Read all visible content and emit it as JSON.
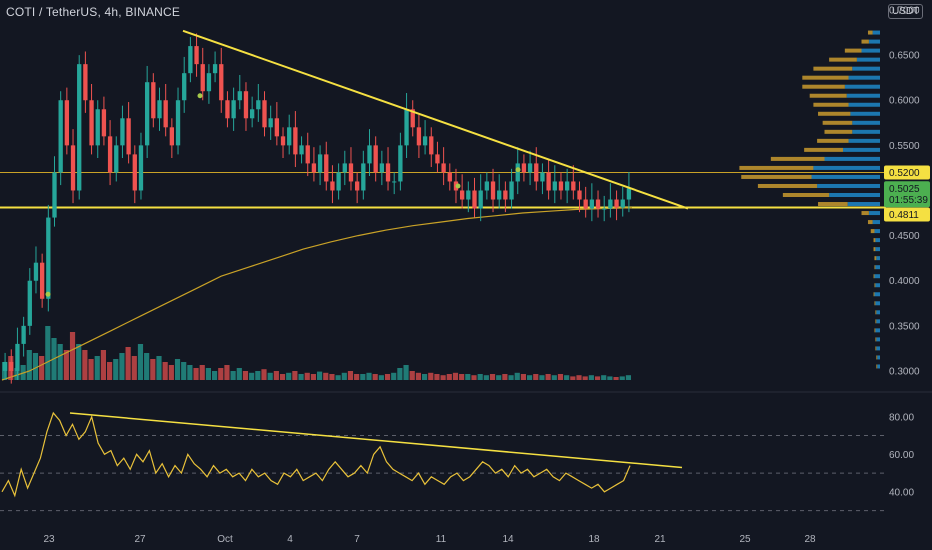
{
  "header": {
    "title": "COTI / TetherUS, 4h, BINANCE",
    "currency": "USDT"
  },
  "colors": {
    "background": "#131722",
    "up": "#26a69a",
    "down": "#ef5350",
    "trendline": "#f5e042",
    "ma": "#c9a227",
    "rsi": "#e8c13a",
    "profile_up": "#1e88c8",
    "profile_down": "#c99a2e",
    "last_price": "#4caf50"
  },
  "chart_data": [
    {
      "type": "candlestick",
      "pane": "price",
      "ylim": [
        0.29,
        0.7
      ],
      "y_ticks": [
        "0.7000",
        "0.6500",
        "0.6000",
        "0.5500",
        "0.4500",
        "0.4000",
        "0.3500",
        "0.3000"
      ],
      "price_tags": {
        "resistance": "0.5200",
        "last_price": "0.5025",
        "countdown": "01:55:39",
        "support": "0.4811"
      },
      "support_level": 0.4811,
      "resistance_level": 0.52,
      "last_price": 0.5025,
      "x_labels": [
        "23",
        "27",
        "Oct",
        "4",
        "7",
        "11",
        "14",
        "18",
        "21",
        "25",
        "28"
      ],
      "trendline": {
        "from": [
          "Sep 28",
          0.677
        ],
        "to": [
          "Oct 22",
          0.48
        ]
      },
      "ohlc_path": [
        0.31,
        0.3,
        0.33,
        0.35,
        0.4,
        0.42,
        0.38,
        0.47,
        0.52,
        0.6,
        0.55,
        0.5,
        0.64,
        0.6,
        0.55,
        0.59,
        0.56,
        0.52,
        0.55,
        0.58,
        0.54,
        0.5,
        0.55,
        0.62,
        0.58,
        0.6,
        0.57,
        0.55,
        0.6,
        0.63,
        0.66,
        0.64,
        0.61,
        0.63,
        0.64,
        0.6,
        0.58,
        0.6,
        0.61,
        0.58,
        0.59,
        0.6,
        0.57,
        0.58,
        0.56,
        0.55,
        0.57,
        0.54,
        0.55,
        0.53,
        0.52,
        0.54,
        0.51,
        0.5,
        0.52,
        0.53,
        0.51,
        0.5,
        0.53,
        0.55,
        0.52,
        0.53,
        0.51,
        0.51,
        0.55,
        0.59,
        0.57,
        0.55,
        0.56,
        0.54,
        0.53,
        0.52,
        0.51,
        0.5,
        0.49,
        0.5,
        0.48,
        0.5,
        0.51,
        0.49,
        0.5,
        0.49,
        0.51,
        0.53,
        0.52,
        0.53,
        0.51,
        0.52,
        0.5,
        0.51,
        0.5,
        0.51,
        0.5,
        0.49,
        0.48,
        0.49,
        0.48,
        0.48,
        0.49,
        0.4811,
        0.49,
        0.5025
      ],
      "ma_path": [
        0.29,
        0.3,
        0.315,
        0.33,
        0.345,
        0.36,
        0.375,
        0.39,
        0.405,
        0.415,
        0.425,
        0.435,
        0.443,
        0.45,
        0.456,
        0.461,
        0.465,
        0.469,
        0.472,
        0.475,
        0.477,
        0.479,
        0.48,
        0.481
      ],
      "volume": [
        0.3,
        0.4,
        0.2,
        0.25,
        0.5,
        0.45,
        0.4,
        0.9,
        0.7,
        0.6,
        0.5,
        0.8,
        0.6,
        0.5,
        0.35,
        0.4,
        0.5,
        0.3,
        0.35,
        0.45,
        0.55,
        0.4,
        0.6,
        0.45,
        0.35,
        0.4,
        0.3,
        0.25,
        0.35,
        0.3,
        0.25,
        0.2,
        0.25,
        0.2,
        0.15,
        0.2,
        0.25,
        0.15,
        0.2,
        0.15,
        0.12,
        0.15,
        0.18,
        0.12,
        0.15,
        0.1,
        0.12,
        0.15,
        0.1,
        0.12,
        0.1,
        0.14,
        0.12,
        0.1,
        0.08,
        0.12,
        0.15,
        0.1,
        0.1,
        0.12,
        0.1,
        0.08,
        0.1,
        0.12,
        0.2,
        0.25,
        0.15,
        0.12,
        0.1,
        0.12,
        0.1,
        0.08,
        0.1,
        0.12,
        0.1,
        0.1,
        0.08,
        0.1,
        0.08,
        0.1,
        0.08,
        0.1,
        0.08,
        0.12,
        0.1,
        0.08,
        0.1,
        0.08,
        0.1,
        0.08,
        0.1,
        0.08,
        0.06,
        0.08,
        0.06,
        0.08,
        0.06,
        0.08,
        0.06,
        0.05,
        0.06,
        0.08
      ],
      "volume_profile": [
        {
          "price": 0.675,
          "up": 0.08,
          "down": 0.05
        },
        {
          "price": 0.665,
          "up": 0.12,
          "down": 0.08
        },
        {
          "price": 0.655,
          "up": 0.2,
          "down": 0.18
        },
        {
          "price": 0.645,
          "up": 0.25,
          "down": 0.3
        },
        {
          "price": 0.635,
          "up": 0.3,
          "down": 0.42
        },
        {
          "price": 0.625,
          "up": 0.34,
          "down": 0.5
        },
        {
          "price": 0.615,
          "up": 0.38,
          "down": 0.46
        },
        {
          "price": 0.605,
          "up": 0.36,
          "down": 0.4
        },
        {
          "price": 0.595,
          "up": 0.34,
          "down": 0.38
        },
        {
          "price": 0.585,
          "up": 0.32,
          "down": 0.35
        },
        {
          "price": 0.575,
          "up": 0.3,
          "down": 0.32
        },
        {
          "price": 0.565,
          "up": 0.3,
          "down": 0.3
        },
        {
          "price": 0.555,
          "up": 0.34,
          "down": 0.34
        },
        {
          "price": 0.545,
          "up": 0.4,
          "down": 0.42
        },
        {
          "price": 0.535,
          "up": 0.6,
          "down": 0.58
        },
        {
          "price": 0.525,
          "up": 0.72,
          "down": 0.8
        },
        {
          "price": 0.515,
          "up": 0.74,
          "down": 0.76
        },
        {
          "price": 0.505,
          "up": 0.68,
          "down": 0.64
        },
        {
          "price": 0.495,
          "up": 0.55,
          "down": 0.5
        },
        {
          "price": 0.485,
          "up": 0.35,
          "down": 0.32
        },
        {
          "price": 0.475,
          "up": 0.12,
          "down": 0.08
        },
        {
          "price": 0.465,
          "up": 0.08,
          "down": 0.05
        },
        {
          "price": 0.455,
          "up": 0.06,
          "down": 0.04
        },
        {
          "price": 0.445,
          "up": 0.05,
          "down": 0.02
        },
        {
          "price": 0.435,
          "up": 0.05,
          "down": 0.02
        },
        {
          "price": 0.425,
          "up": 0.04,
          "down": 0.02
        },
        {
          "price": 0.415,
          "up": 0.05,
          "down": 0.01
        },
        {
          "price": 0.405,
          "up": 0.06,
          "down": 0.01
        },
        {
          "price": 0.395,
          "up": 0.05,
          "down": 0.01
        },
        {
          "price": 0.385,
          "up": 0.06,
          "down": 0.01
        },
        {
          "price": 0.375,
          "up": 0.05,
          "down": 0.01
        },
        {
          "price": 0.365,
          "up": 0.04,
          "down": 0.01
        },
        {
          "price": 0.355,
          "up": 0.04,
          "down": 0.01
        },
        {
          "price": 0.345,
          "up": 0.05,
          "down": 0.01
        },
        {
          "price": 0.335,
          "up": 0.04,
          "down": 0.01
        },
        {
          "price": 0.325,
          "up": 0.04,
          "down": 0.01
        },
        {
          "price": 0.315,
          "up": 0.03,
          "down": 0.01
        },
        {
          "price": 0.305,
          "up": 0.03,
          "down": 0.01
        }
      ]
    },
    {
      "type": "line",
      "pane": "rsi",
      "ylim": [
        25,
        90
      ],
      "y_ticks": [
        "80.00",
        "60.00",
        "40.00"
      ],
      "dashed_levels": [
        70,
        50,
        30
      ],
      "trendline": {
        "from": [
          "Sep 23",
          82
        ],
        "to": [
          "Oct 22",
          53
        ]
      },
      "values": [
        40,
        46,
        38,
        52,
        42,
        50,
        58,
        72,
        82,
        78,
        70,
        76,
        68,
        72,
        80,
        66,
        60,
        62,
        54,
        58,
        52,
        60,
        56,
        62,
        50,
        55,
        48,
        54,
        50,
        60,
        55,
        52,
        48,
        54,
        50,
        52,
        48,
        50,
        46,
        52,
        48,
        50,
        46,
        44,
        50,
        48,
        52,
        46,
        48,
        50,
        46,
        52,
        56,
        52,
        48,
        50,
        54,
        50,
        60,
        64,
        56,
        52,
        50,
        48,
        46,
        50,
        44,
        48,
        46,
        44,
        48,
        50,
        46,
        48,
        52,
        56,
        54,
        50,
        52,
        48,
        54,
        50,
        52,
        48,
        50,
        52,
        48,
        46,
        50,
        48,
        46,
        44,
        42,
        44,
        40,
        42,
        44,
        46,
        54
      ]
    }
  ]
}
